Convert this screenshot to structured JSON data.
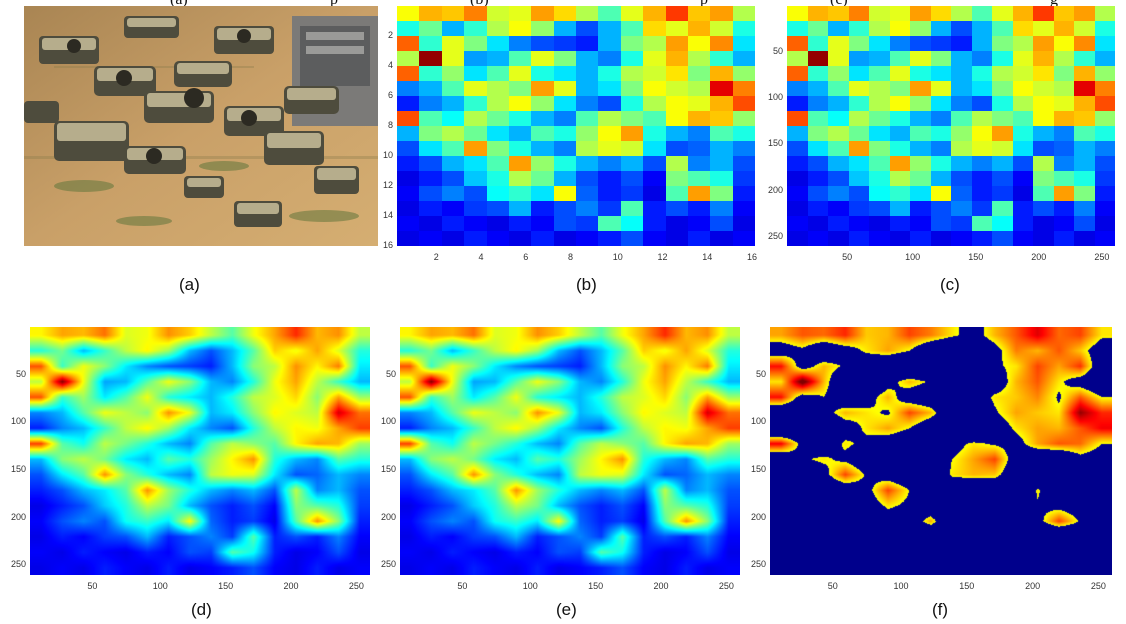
{
  "header_fragment": {
    "part1": "(a)",
    "part2": "p",
    "part3": "(b)",
    "part4": "p",
    "part5": "(c)",
    "part6": "g"
  },
  "captions": {
    "a": "(a)",
    "b": "(b)",
    "c": "(c)",
    "d": "(d)",
    "e": "(e)",
    "f": "(f)"
  },
  "panels": {
    "b": {
      "yticks": [
        "2",
        "4",
        "6",
        "8",
        "10",
        "12",
        "14",
        "16"
      ],
      "xticks": [
        "2",
        "4",
        "6",
        "8",
        "10",
        "12",
        "14",
        "16"
      ]
    },
    "c": {
      "yticks": [
        "50",
        "100",
        "150",
        "200",
        "250"
      ],
      "xticks": [
        "50",
        "100",
        "150",
        "200",
        "250"
      ]
    },
    "d": {
      "yticks": [
        "50",
        "100",
        "150",
        "200",
        "250"
      ],
      "xticks": [
        "50",
        "100",
        "150",
        "200",
        "250"
      ]
    },
    "e": {
      "yticks": [
        "50",
        "100",
        "150",
        "200",
        "250"
      ],
      "xticks": [
        "50",
        "100",
        "150",
        "200",
        "250"
      ]
    },
    "f": {
      "yticks": [
        "50",
        "100",
        "150",
        "200",
        "250"
      ],
      "xticks": [
        "50",
        "100",
        "150",
        "200",
        "250"
      ]
    }
  },
  "grid": [
    [
      0.62,
      0.7,
      0.68,
      0.75,
      0.58,
      0.6,
      0.72,
      0.66,
      0.55,
      0.45,
      0.6,
      0.7,
      0.82,
      0.68,
      0.72,
      0.55
    ],
    [
      0.4,
      0.48,
      0.3,
      0.42,
      0.55,
      0.62,
      0.52,
      0.3,
      0.2,
      0.3,
      0.45,
      0.66,
      0.6,
      0.7,
      0.58,
      0.4
    ],
    [
      0.78,
      0.42,
      0.6,
      0.5,
      0.35,
      0.25,
      0.2,
      0.18,
      0.15,
      0.3,
      0.5,
      0.55,
      0.72,
      0.62,
      0.74,
      0.35
    ],
    [
      0.55,
      0.98,
      0.6,
      0.28,
      0.3,
      0.45,
      0.6,
      0.5,
      0.3,
      0.25,
      0.4,
      0.6,
      0.7,
      0.55,
      0.42,
      0.3
    ],
    [
      0.78,
      0.42,
      0.52,
      0.35,
      0.45,
      0.6,
      0.4,
      0.35,
      0.3,
      0.4,
      0.55,
      0.58,
      0.65,
      0.5,
      0.7,
      0.52
    ],
    [
      0.25,
      0.3,
      0.45,
      0.6,
      0.55,
      0.5,
      0.72,
      0.6,
      0.3,
      0.35,
      0.5,
      0.62,
      0.58,
      0.55,
      0.9,
      0.75
    ],
    [
      0.15,
      0.25,
      0.3,
      0.42,
      0.55,
      0.62,
      0.52,
      0.35,
      0.25,
      0.2,
      0.4,
      0.55,
      0.62,
      0.6,
      0.7,
      0.8
    ],
    [
      0.8,
      0.45,
      0.38,
      0.55,
      0.48,
      0.4,
      0.3,
      0.25,
      0.45,
      0.55,
      0.5,
      0.45,
      0.62,
      0.7,
      0.68,
      0.52
    ],
    [
      0.3,
      0.5,
      0.55,
      0.48,
      0.35,
      0.3,
      0.45,
      0.4,
      0.52,
      0.62,
      0.72,
      0.4,
      0.3,
      0.25,
      0.45,
      0.4
    ],
    [
      0.2,
      0.35,
      0.45,
      0.72,
      0.5,
      0.4,
      0.3,
      0.25,
      0.55,
      0.6,
      0.58,
      0.35,
      0.2,
      0.22,
      0.3,
      0.25
    ],
    [
      0.15,
      0.2,
      0.3,
      0.35,
      0.45,
      0.72,
      0.52,
      0.4,
      0.3,
      0.25,
      0.3,
      0.2,
      0.55,
      0.25,
      0.3,
      0.2
    ],
    [
      0.1,
      0.15,
      0.2,
      0.32,
      0.4,
      0.55,
      0.48,
      0.3,
      0.2,
      0.15,
      0.2,
      0.12,
      0.5,
      0.45,
      0.4,
      0.18
    ],
    [
      0.12,
      0.2,
      0.25,
      0.2,
      0.38,
      0.42,
      0.35,
      0.62,
      0.22,
      0.15,
      0.18,
      0.1,
      0.45,
      0.72,
      0.5,
      0.15
    ],
    [
      0.1,
      0.15,
      0.12,
      0.18,
      0.2,
      0.3,
      0.15,
      0.2,
      0.25,
      0.18,
      0.45,
      0.15,
      0.2,
      0.15,
      0.25,
      0.12
    ],
    [
      0.12,
      0.1,
      0.15,
      0.12,
      0.1,
      0.15,
      0.12,
      0.2,
      0.18,
      0.45,
      0.38,
      0.15,
      0.1,
      0.12,
      0.2,
      0.1
    ],
    [
      0.1,
      0.12,
      0.1,
      0.15,
      0.12,
      0.1,
      0.15,
      0.1,
      0.12,
      0.15,
      0.2,
      0.12,
      0.1,
      0.15,
      0.1,
      0.12
    ]
  ]
}
